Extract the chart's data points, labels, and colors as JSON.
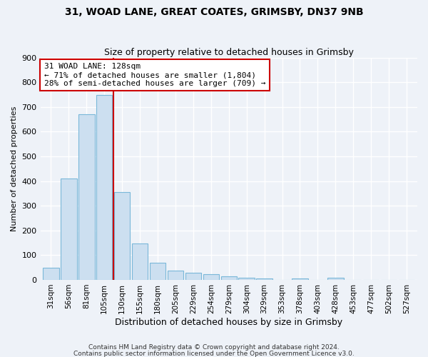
{
  "title1": "31, WOAD LANE, GREAT COATES, GRIMSBY, DN37 9NB",
  "title2": "Size of property relative to detached houses in Grimsby",
  "xlabel": "Distribution of detached houses by size in Grimsby",
  "ylabel": "Number of detached properties",
  "footnote1": "Contains HM Land Registry data © Crown copyright and database right 2024.",
  "footnote2": "Contains public sector information licensed under the Open Government Licence v3.0.",
  "bar_labels": [
    "31sqm",
    "56sqm",
    "81sqm",
    "105sqm",
    "130sqm",
    "155sqm",
    "180sqm",
    "205sqm",
    "229sqm",
    "254sqm",
    "279sqm",
    "304sqm",
    "329sqm",
    "353sqm",
    "378sqm",
    "403sqm",
    "428sqm",
    "453sqm",
    "477sqm",
    "502sqm",
    "527sqm"
  ],
  "bar_values": [
    48,
    410,
    670,
    750,
    355,
    148,
    70,
    38,
    30,
    22,
    14,
    8,
    7,
    0,
    5,
    0,
    8,
    0,
    0,
    0,
    0
  ],
  "bar_color": "#ccdff0",
  "bar_edge_color": "#7ab8d9",
  "property_line_label": "31 WOAD LANE: 128sqm",
  "annotation_line1": "← 71% of detached houses are smaller (1,804)",
  "annotation_line2": "28% of semi-detached houses are larger (709) →",
  "vline_color": "#cc0000",
  "annotation_box_edge_color": "#cc0000",
  "vline_x_index": 3.5,
  "ylim": [
    0,
    900
  ],
  "yticks": [
    0,
    100,
    200,
    300,
    400,
    500,
    600,
    700,
    800,
    900
  ],
  "bg_color": "#eef2f8",
  "plot_bg_color": "#eef2f8",
  "grid_color": "#ffffff",
  "title1_fontsize": 10,
  "title2_fontsize": 9,
  "ylabel_fontsize": 8,
  "xlabel_fontsize": 9,
  "tick_fontsize": 8,
  "xtick_fontsize": 7.5,
  "footnote_fontsize": 6.5
}
